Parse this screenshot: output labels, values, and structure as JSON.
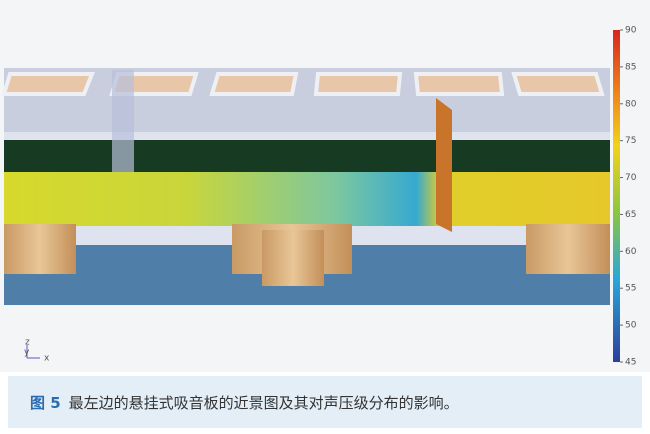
{
  "figure": {
    "colorbar": {
      "range": [
        45,
        90
      ],
      "ticks": [
        90,
        85,
        80,
        75,
        70,
        65,
        60,
        55,
        50,
        45
      ]
    },
    "axis_labels": {
      "z": "z",
      "y": "y",
      "x": "x"
    }
  },
  "caption": {
    "label": "图 5",
    "text": "最左边的悬挂式吸音板的近景图及其对声压级分布的影响。"
  }
}
